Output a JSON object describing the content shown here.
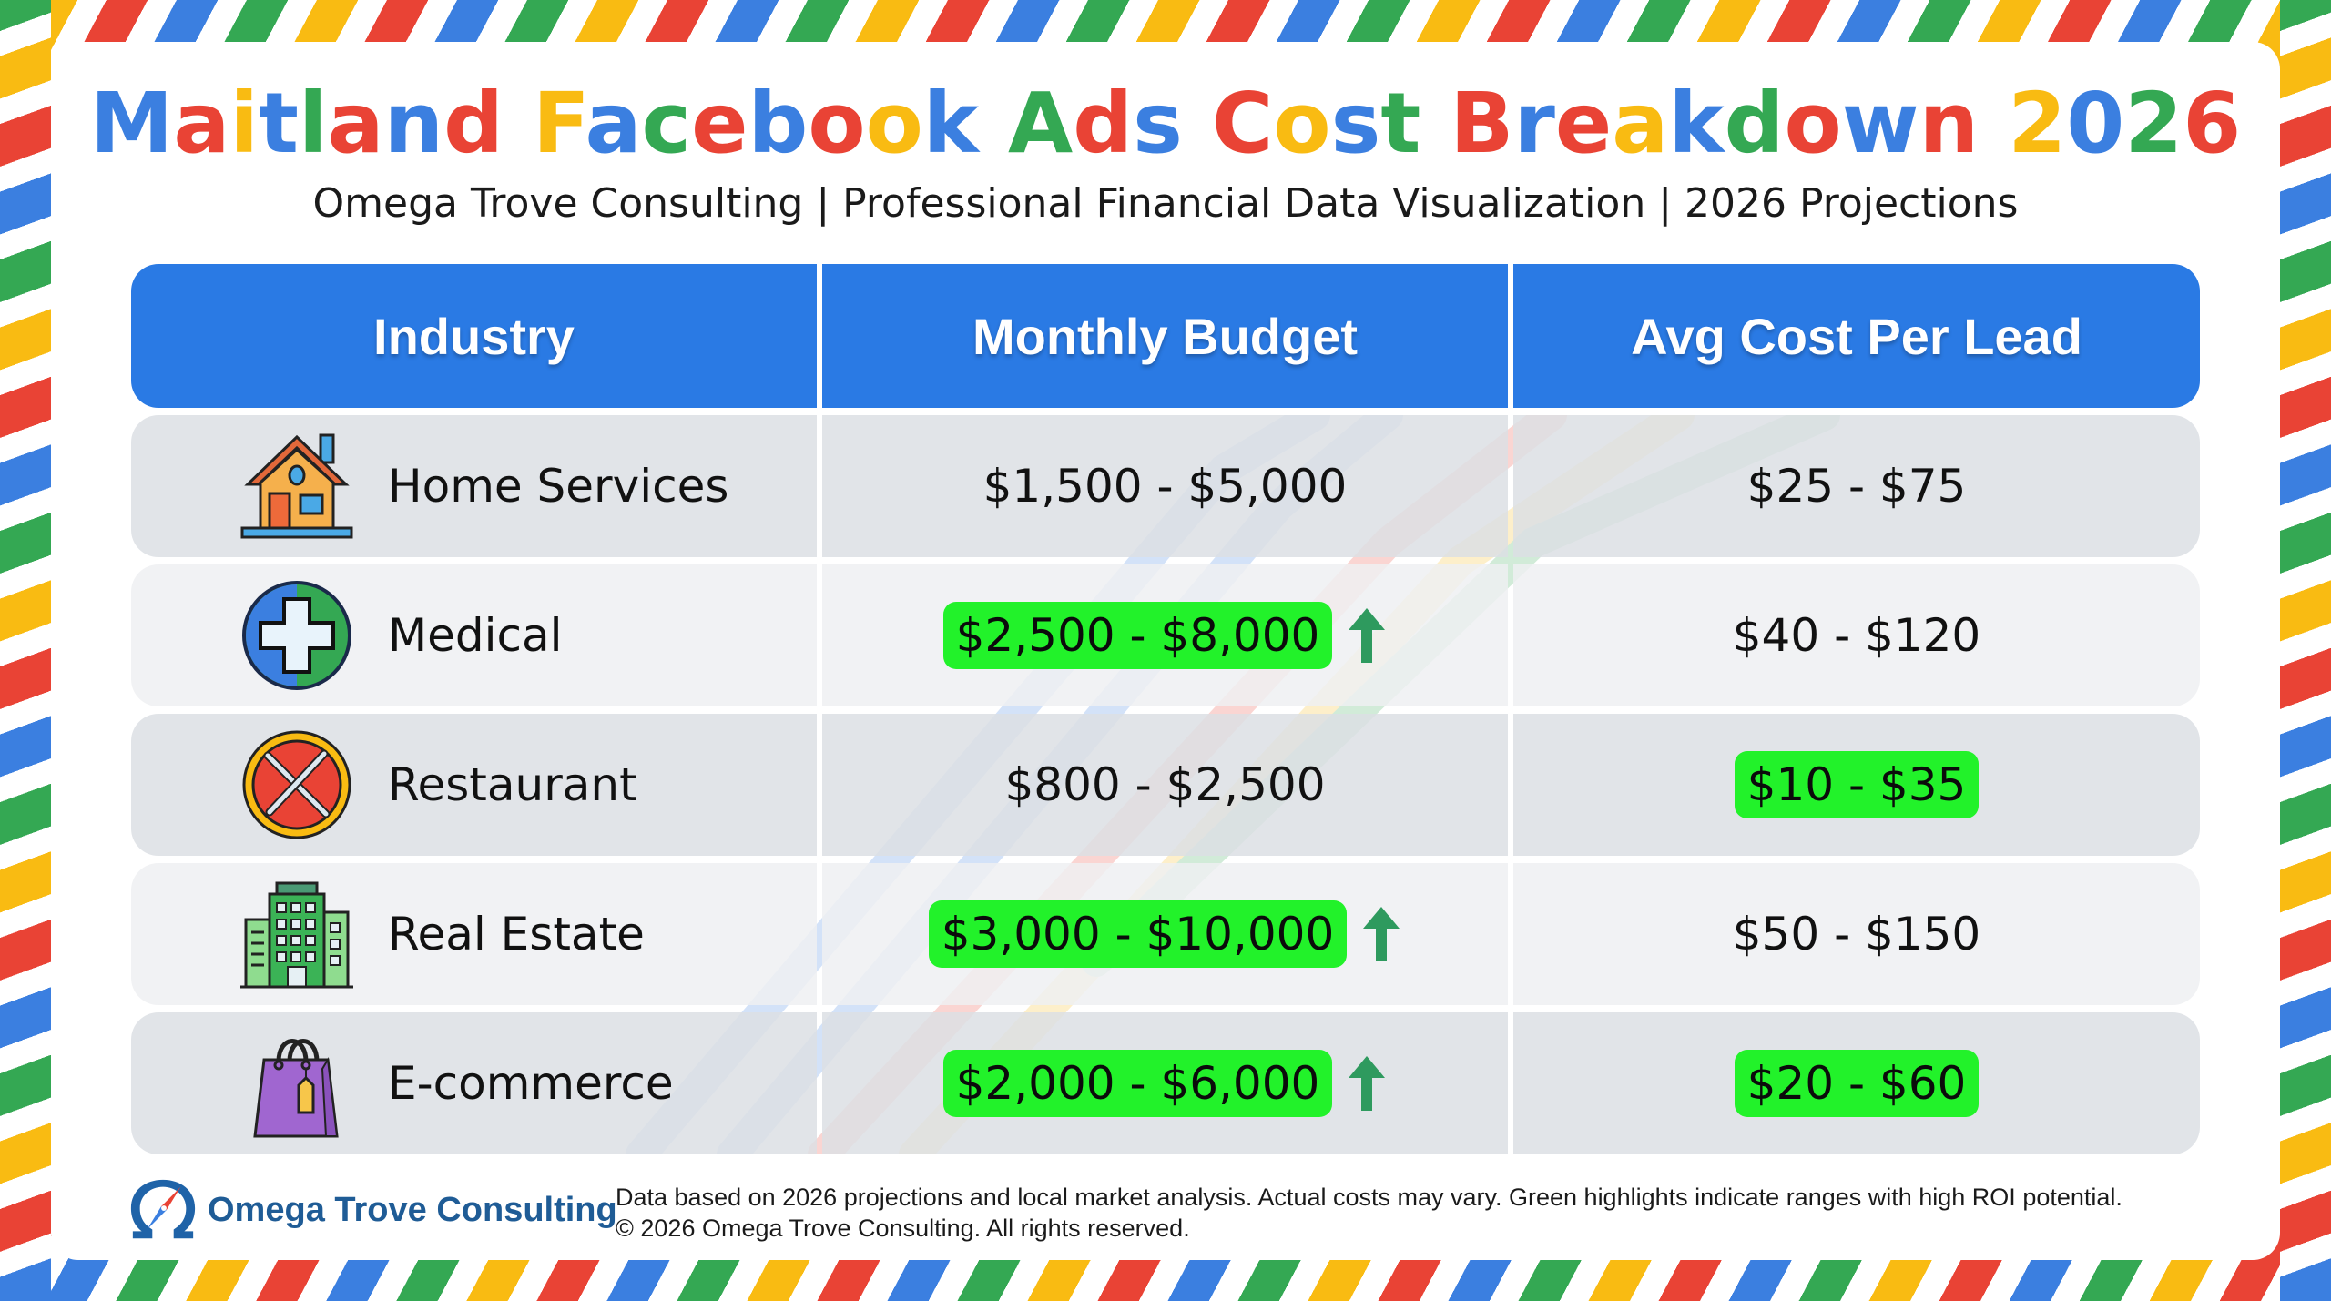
{
  "header": {
    "title": "Maitland Facebook Ads Cost Breakdown 2026",
    "subtitle": "Omega Trove Consulting | Professional Financial Data Visualization | 2026 Projections"
  },
  "colors": {
    "blue": "#3b7fe0",
    "red": "#e94335",
    "yellow": "#f9bb12",
    "green": "#34a853",
    "header_blue": "#2a7ae4",
    "highlight_green": "#22f22a",
    "arrow_green": "#2e9a5e",
    "logo_blue": "#1f5c96"
  },
  "table": {
    "columns": [
      "Industry",
      "Monthly Budget",
      "Avg Cost Per Lead"
    ],
    "rows": [
      {
        "icon": "house-icon",
        "industry": "Home Services",
        "monthly_budget": "$1,500 - $5,000",
        "budget_highlight": false,
        "budget_trend_up": false,
        "cost_per_lead": "$25 - $75",
        "cpl_highlight": false
      },
      {
        "icon": "medical-cross-icon",
        "industry": "Medical",
        "monthly_budget": "$2,500 - $8,000",
        "budget_highlight": true,
        "budget_trend_up": true,
        "cost_per_lead": "$40 - $120",
        "cpl_highlight": false
      },
      {
        "icon": "fork-knife-icon",
        "industry": "Restaurant",
        "monthly_budget": "$800 - $2,500",
        "budget_highlight": false,
        "budget_trend_up": false,
        "cost_per_lead": "$10 - $35",
        "cpl_highlight": true
      },
      {
        "icon": "building-icon",
        "industry": "Real Estate",
        "monthly_budget": "$3,000 - $10,000",
        "budget_highlight": true,
        "budget_trend_up": true,
        "cost_per_lead": "$50 - $150",
        "cpl_highlight": false
      },
      {
        "icon": "shopping-bag-icon",
        "industry": "E-commerce",
        "monthly_budget": "$2,000 - $6,000",
        "budget_highlight": true,
        "budget_trend_up": true,
        "cost_per_lead": "$20 - $60",
        "cpl_highlight": true
      }
    ]
  },
  "footer": {
    "logo_text": "Omega Trove Consulting",
    "note_line1": "Data based on 2026 projections and local market analysis. Actual costs may vary. Green highlights indicate ranges with high ROI potential.",
    "note_line2": "© 2026 Omega Trove Consulting. All rights reserved."
  },
  "chart_data": {
    "type": "table",
    "title": "Maitland Facebook Ads Cost Breakdown 2026",
    "columns": [
      "Industry",
      "Monthly Budget",
      "Avg Cost Per Lead"
    ],
    "rows": [
      [
        "Home Services",
        "$1,500 - $5,000",
        "$25 - $75"
      ],
      [
        "Medical",
        "$2,500 - $8,000",
        "$40 - $120"
      ],
      [
        "Restaurant",
        "$800 - $2,500",
        "$10 - $35"
      ],
      [
        "Real Estate",
        "$3,000 - $10,000",
        "$50 - $150"
      ],
      [
        "E-commerce",
        "$2,000 - $6,000",
        "$20 - $60"
      ]
    ],
    "highlights": {
      "monthly_budget_high_roi": [
        "Medical",
        "Real Estate",
        "E-commerce"
      ],
      "cost_per_lead_high_roi": [
        "Restaurant",
        "E-commerce"
      ],
      "trend_up_arrows": [
        "Medical",
        "Real Estate",
        "E-commerce"
      ]
    }
  }
}
